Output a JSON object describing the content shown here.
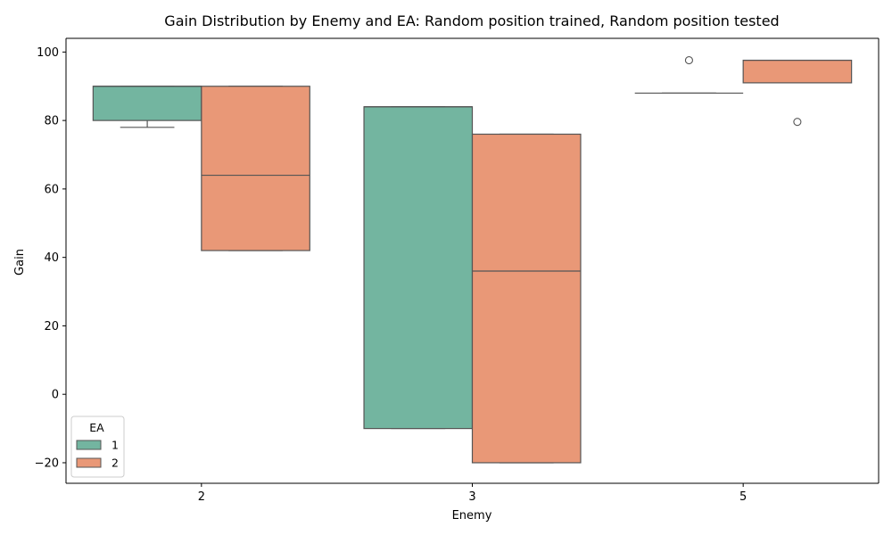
{
  "chart_data": {
    "type": "box",
    "title": "Gain Distribution by Enemy and EA: Random position trained, Random position tested",
    "xlabel": "Enemy",
    "ylabel": "Gain",
    "categories": [
      "2",
      "3",
      "5"
    ],
    "ylim": [
      -26,
      104
    ],
    "yticks": [
      -20,
      0,
      20,
      40,
      60,
      80,
      100
    ],
    "grid": false,
    "legend": {
      "title": "EA",
      "position": "lower-left"
    },
    "series": [
      {
        "name": "1",
        "color": "#73b5a0",
        "boxes": [
          {
            "category": "2",
            "whisker_low": 78,
            "q1": 80,
            "median": 90,
            "q3": 90,
            "whisker_high": 90,
            "outliers": []
          },
          {
            "category": "3",
            "whisker_low": -10,
            "q1": -10,
            "median": 84,
            "q3": 84,
            "whisker_high": 84,
            "outliers": []
          },
          {
            "category": "5",
            "whisker_low": 88,
            "q1": 88,
            "median": 88,
            "q3": 88,
            "whisker_high": 88,
            "outliers": [
              97.6
            ]
          }
        ]
      },
      {
        "name": "2",
        "color": "#e99877",
        "boxes": [
          {
            "category": "2",
            "whisker_low": 42,
            "q1": 42,
            "median": 64,
            "q3": 90,
            "whisker_high": 90,
            "outliers": []
          },
          {
            "category": "3",
            "whisker_low": -20,
            "q1": -20,
            "median": 36,
            "q3": 76,
            "whisker_high": 76,
            "outliers": []
          },
          {
            "category": "5",
            "whisker_low": 91,
            "q1": 91,
            "median": 97.6,
            "q3": 97.6,
            "whisker_high": 97.6,
            "outliers": [
              79.6
            ]
          }
        ]
      }
    ]
  }
}
